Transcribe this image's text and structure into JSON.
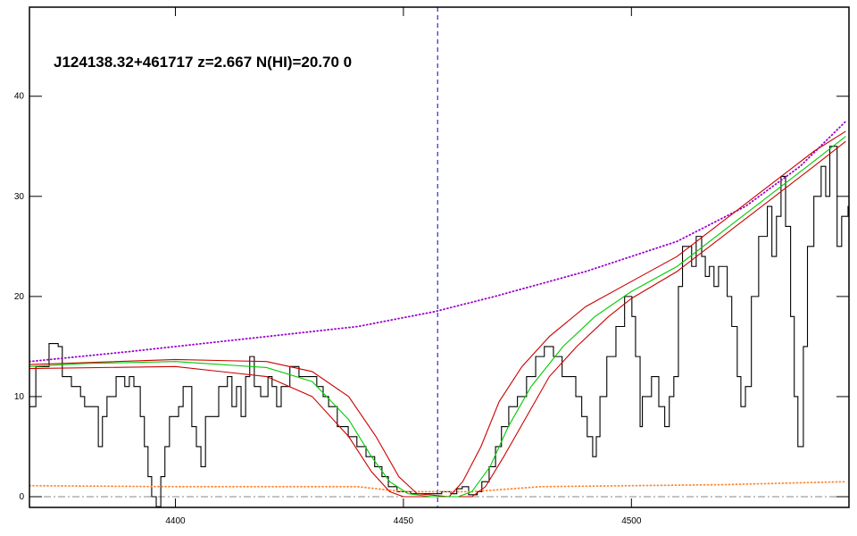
{
  "chart_data": {
    "type": "line",
    "title": "J124138.32+461717 z=2.667 N(HI)=20.70 0",
    "xlim": [
      4368.0,
      4547.7
    ],
    "ylim": [
      -1.07,
      48.9
    ],
    "xticks": [
      4400,
      4450,
      4500
    ],
    "yticks": [
      0,
      10,
      20,
      30,
      40
    ],
    "vlines": [
      4457.5
    ],
    "vline_color": "#0000cc",
    "hlines": [
      0
    ],
    "hline_color": "#888888",
    "series": [
      {
        "color": "#000000",
        "style": "step",
        "x": [
          4368.0,
          4369.4,
          4372.3,
          4374.3,
          4375.2,
          4377.2,
          4379.2,
          4380.1,
          4383.1,
          4384.0,
          4385.0,
          4387.0,
          4388.9,
          4389.9,
          4390.9,
          4392.3,
          4393.2,
          4394.0,
          4394.8,
          4395.8,
          4396.8,
          4397.7,
          4398.7,
          4400.7,
          4401.7,
          4403.6,
          4404.6,
          4405.6,
          4406.6,
          4409.5,
          4411.4,
          4412.4,
          4413.4,
          4414.4,
          4415.4,
          4416.3,
          4417.3,
          4418.7,
          4420.3,
          4421.2,
          4422.2,
          4423.2,
          4425.1,
          4427.1,
          4429.1,
          4431.0,
          4432.4,
          4433.6,
          4435.5,
          4437.9,
          4439.8,
          4441.8,
          4443.7,
          4445.3,
          4446.7,
          4448.6,
          4451.6,
          4455.5,
          4458.4,
          4460.4,
          4461.7,
          4462.9,
          4464.3,
          4466.2,
          4467.2,
          4468.8,
          4470.2,
          4471.5,
          4473.1,
          4475.0,
          4477.0,
          4479.0,
          4480.9,
          4482.9,
          4484.8,
          4487.8,
          4489.1,
          4490.3,
          4491.5,
          4492.3,
          4493.1,
          4494.6,
          4496.6,
          4498.5,
          4500.1,
          4500.9,
          4501.9,
          4502.4,
          4504.4,
          4506.0,
          4507.3,
          4508.3,
          4509.3,
          4510.3,
          4511.2,
          4513.2,
          4514.2,
          4515.4,
          4516.2,
          4517.1,
          4518.1,
          4519.1,
          4521.0,
          4522.0,
          4523.2,
          4524.0,
          4525.0,
          4526.3,
          4527.9,
          4529.8,
          4530.8,
          4531.8,
          4532.8,
          4533.8,
          4534.9,
          4535.7,
          4536.5,
          4537.7,
          4538.6,
          4540.0,
          4541.6,
          4542.6,
          4543.5,
          4545.1,
          4546.1,
          4547.5
        ],
        "values": [
          9,
          13,
          15.3,
          15,
          12,
          11,
          10,
          9,
          5,
          8,
          10,
          12,
          11,
          12,
          11,
          8,
          5,
          2,
          0,
          -1,
          2,
          5,
          8,
          9,
          11,
          7,
          5,
          3,
          8,
          11,
          12,
          9,
          11,
          8,
          12,
          14,
          11,
          10,
          12,
          11,
          9,
          11,
          13,
          12,
          12,
          11,
          10,
          9,
          7,
          6,
          5,
          4,
          3,
          2,
          1,
          0.5,
          0.3,
          0.3,
          0.5,
          0.3,
          0.8,
          1,
          0.2,
          0.5,
          1.5,
          3,
          5,
          7,
          9,
          10,
          12,
          14,
          15,
          14,
          12,
          10,
          8,
          6,
          4,
          6,
          10,
          14,
          17,
          20,
          18,
          14,
          7,
          10,
          12,
          9,
          7,
          10,
          12,
          21,
          25,
          23,
          26,
          24,
          22,
          23,
          21,
          23,
          20,
          17,
          12,
          9,
          11,
          20,
          26,
          29,
          24,
          28,
          32,
          27,
          18,
          10,
          5,
          15,
          25,
          30,
          33,
          30,
          35,
          25,
          28,
          29
        ]
      },
      {
        "color": "#9900cc",
        "style": "dotted",
        "x": [
          4368,
          4390,
          4410,
          4440,
          4457,
          4470,
          4490,
          4510,
          4525,
          4537,
          4547
        ],
        "values": [
          13.5,
          14.5,
          15.5,
          17,
          18.5,
          20,
          22.5,
          25.5,
          29,
          33,
          37.5
        ]
      },
      {
        "color": "#ff8833",
        "style": "dotted",
        "x": [
          4368,
          4400,
          4440,
          4450,
          4465,
          4480,
          4500,
          4520,
          4547
        ],
        "values": [
          1.1,
          1,
          1,
          0.5,
          0.5,
          1,
          1.1,
          1.2,
          1.5
        ]
      },
      {
        "color": "#cc0000",
        "style": "line",
        "x": [
          4368,
          4400,
          4420,
          4430,
          4438,
          4444,
          4449,
          4453,
          4460,
          4463,
          4467,
          4471,
          4476,
          4482,
          4490,
          4500,
          4510,
          4520,
          4530,
          4540,
          4547
        ],
        "values": [
          13.2,
          13.7,
          13.5,
          12.5,
          10,
          6,
          2,
          0.3,
          0,
          1.5,
          5,
          9.5,
          13,
          16,
          19,
          21.5,
          24,
          27.5,
          31,
          34.5,
          36.5
        ]
      },
      {
        "color": "#cc0000",
        "style": "line",
        "x": [
          4368,
          4400,
          4420,
          4430,
          4438,
          4443,
          4447,
          4450,
          4465,
          4468,
          4472,
          4477,
          4482,
          4488,
          4495,
          4500,
          4510,
          4520,
          4530,
          4540,
          4547
        ],
        "values": [
          12.8,
          13,
          12,
          10,
          6,
          2.5,
          0.5,
          0,
          0,
          1,
          4,
          8,
          12,
          15,
          18,
          19.8,
          22.5,
          26,
          29.5,
          33,
          35.5
        ]
      },
      {
        "color": "#00cc00",
        "style": "line",
        "x": [
          4368,
          4380,
          4400,
          4420,
          4430,
          4438,
          4443,
          4447,
          4451,
          4456,
          4462,
          4465,
          4469,
          4473,
          4478,
          4485,
          4492,
          4500,
          4510,
          4520,
          4530,
          4540,
          4547
        ],
        "values": [
          13,
          13.3,
          13.5,
          12.9,
          11.5,
          7.7,
          4,
          1.5,
          0.3,
          0,
          0,
          0.5,
          3,
          7,
          11,
          15,
          18,
          20.5,
          23,
          26.5,
          30,
          33.5,
          36
        ]
      }
    ]
  }
}
